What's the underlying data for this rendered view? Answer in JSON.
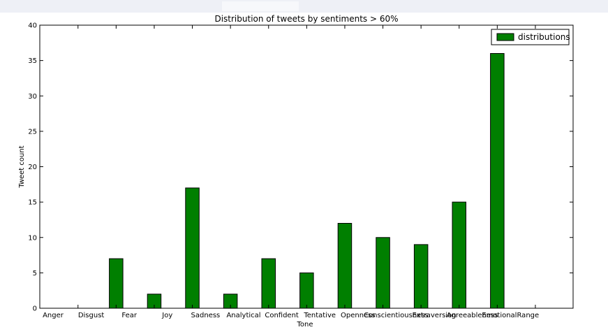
{
  "chart_data": {
    "type": "bar",
    "title": "Distribution of tweets by sentiments > 60%",
    "xlabel": "Tone",
    "ylabel": "Tweet count",
    "categories": [
      "Anger",
      "Disgust",
      "Fear",
      "Joy",
      "Sadness",
      "Analytical",
      "Confident",
      "Tentative",
      "Openness",
      "Conscientiousness",
      "Extraversion",
      "Agreeableness",
      "EmotionalRange"
    ],
    "series": [
      {
        "name": "distributions",
        "values": [
          0,
          7,
          2,
          17,
          2,
          7,
          5,
          12,
          10,
          9,
          15,
          36,
          0
        ],
        "color": "#007f00"
      }
    ],
    "ylim": [
      0,
      40
    ],
    "yticks": [
      0,
      5,
      10,
      15,
      20,
      25,
      30,
      35,
      40
    ],
    "grid": false,
    "legend": "top-right"
  }
}
